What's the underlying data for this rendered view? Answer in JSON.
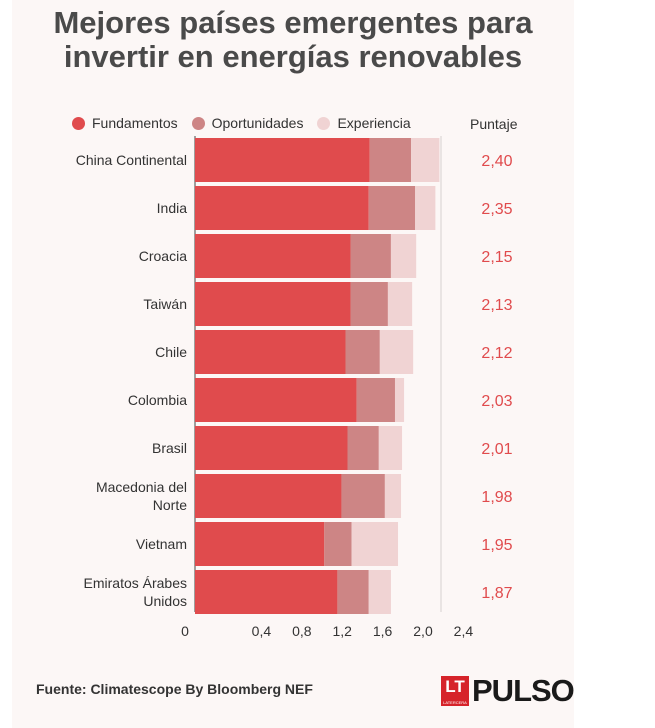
{
  "title_line1": "Mejores países emergentes para",
  "title_line2": "invertir en energías renovables",
  "score_header": "Puntaje",
  "source": "Fuente: Climatescope By Bloomberg NEF",
  "brand": {
    "box": "LT",
    "box_sub": "LATERCERA",
    "word": "PULSO"
  },
  "colors": {
    "fundamentos": "#e04b4d",
    "oportunidades": "#cd8585",
    "experiencia": "#f0d3d3",
    "score": "#e04b4d"
  },
  "chart_data": {
    "type": "bar",
    "orientation": "horizontal",
    "stacked": true,
    "categories": [
      "China Continental",
      "India",
      "Croacia",
      "Taiwán",
      "Chile",
      "Colombia",
      "Brasil",
      "Macedonia del Norte",
      "Vietnam",
      "Emiratos Árabes Unidos"
    ],
    "category_lines": [
      [
        "China Continental"
      ],
      [
        "India"
      ],
      [
        "Croacia"
      ],
      [
        "Taiwán"
      ],
      [
        "Chile"
      ],
      [
        "Colombia"
      ],
      [
        "Brasil"
      ],
      [
        "Macedonia del",
        "Norte"
      ],
      [
        "Vietnam"
      ],
      [
        "Emiratos Árabes",
        "Unidos"
      ]
    ],
    "series": [
      {
        "name": "Fundamentos",
        "values": [
          1.73,
          1.72,
          1.54,
          1.54,
          1.49,
          1.6,
          1.51,
          1.45,
          1.28,
          1.41
        ]
      },
      {
        "name": "Oportunidades",
        "values": [
          0.41,
          0.46,
          0.4,
          0.37,
          0.34,
          0.38,
          0.31,
          0.43,
          0.27,
          0.31
        ]
      },
      {
        "name": "Experiencia",
        "values": [
          0.28,
          0.2,
          0.25,
          0.24,
          0.33,
          0.09,
          0.23,
          0.16,
          0.46,
          0.22
        ]
      }
    ],
    "scores": [
      "2,40",
      "2,35",
      "2,15",
      "2,13",
      "2,12",
      "2,03",
      "2,01",
      "1,98",
      "1,95",
      "1,87"
    ],
    "xticks": [
      "0",
      "0,4",
      "0,8",
      "1,2",
      "1,6",
      "2,0",
      "2,4"
    ],
    "xlim": [
      0,
      2.4
    ],
    "legend_position": "top"
  }
}
